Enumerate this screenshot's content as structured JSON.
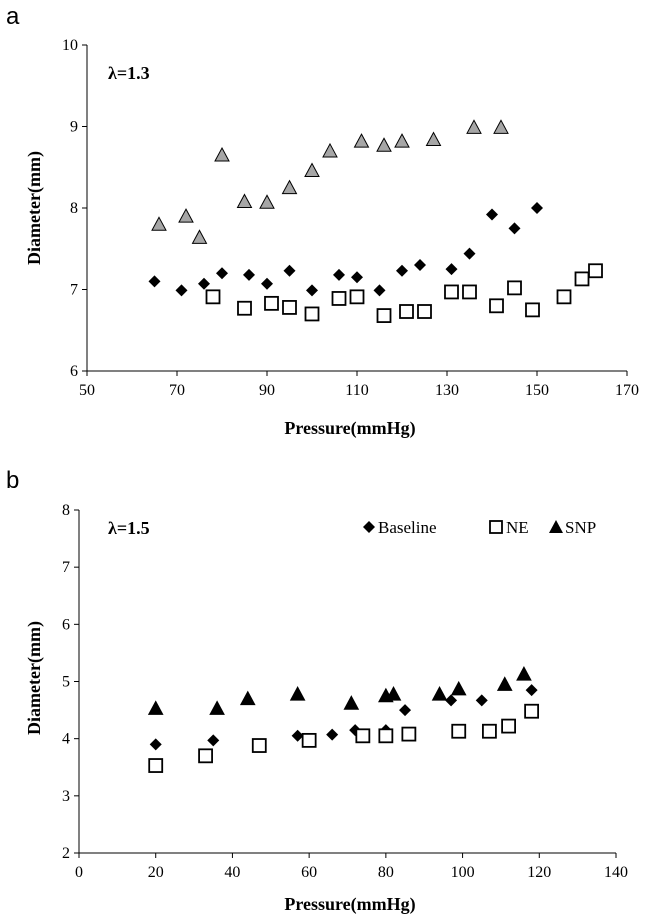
{
  "chart_data": [
    {
      "type": "scatter",
      "panel": "a",
      "annotation": "λ=1.3",
      "xlabel": "Pressure(mmHg)",
      "ylabel": "Diameter(mm)",
      "xlim": [
        50,
        170
      ],
      "ylim": [
        6,
        10
      ],
      "xticks": [
        50,
        70,
        90,
        110,
        130,
        150,
        170
      ],
      "yticks": [
        6,
        7,
        8,
        9,
        10
      ],
      "grid": false,
      "series": [
        {
          "marker": "diamond",
          "color": "#000000",
          "points": [
            [
              65,
              7.1
            ],
            [
              71,
              6.99
            ],
            [
              76,
              7.07
            ],
            [
              80,
              7.2
            ],
            [
              86,
              7.18
            ],
            [
              90,
              7.07
            ],
            [
              95,
              7.23
            ],
            [
              100,
              6.99
            ],
            [
              106,
              7.18
            ],
            [
              110,
              7.15
            ],
            [
              115,
              6.99
            ],
            [
              120,
              7.23
            ],
            [
              124,
              7.3
            ],
            [
              131,
              7.25
            ],
            [
              135,
              7.44
            ],
            [
              140,
              7.92
            ],
            [
              145,
              7.75
            ],
            [
              150,
              8.0
            ]
          ]
        },
        {
          "marker": "square-open",
          "color": "#000000",
          "points": [
            [
              78,
              6.91
            ],
            [
              85,
              6.77
            ],
            [
              91,
              6.83
            ],
            [
              95,
              6.78
            ],
            [
              100,
              6.7
            ],
            [
              106,
              6.89
            ],
            [
              110,
              6.91
            ],
            [
              116,
              6.68
            ],
            [
              121,
              6.73
            ],
            [
              125,
              6.73
            ],
            [
              131,
              6.97
            ],
            [
              135,
              6.97
            ],
            [
              141,
              6.8
            ],
            [
              145,
              7.02
            ],
            [
              149,
              6.75
            ],
            [
              156,
              6.91
            ],
            [
              160,
              7.13
            ],
            [
              163,
              7.23
            ]
          ]
        },
        {
          "marker": "triangle",
          "color": "#a6a6a6",
          "points": [
            [
              66,
              7.8
            ],
            [
              72,
              7.9
            ],
            [
              75,
              7.64
            ],
            [
              80,
              8.65
            ],
            [
              85,
              8.08
            ],
            [
              90,
              8.07
            ],
            [
              95,
              8.25
            ],
            [
              100,
              8.46
            ],
            [
              104,
              8.7
            ],
            [
              111,
              8.82
            ],
            [
              116,
              8.77
            ],
            [
              120,
              8.82
            ],
            [
              127,
              8.84
            ],
            [
              136,
              8.99
            ],
            [
              142,
              8.99
            ]
          ]
        }
      ]
    },
    {
      "type": "scatter",
      "panel": "b",
      "annotation": "λ=1.5",
      "xlabel": "Pressure(mmHg)",
      "ylabel": "Diameter(mm)",
      "xlim": [
        0,
        140
      ],
      "ylim": [
        2,
        8
      ],
      "xticks": [
        0,
        20,
        40,
        60,
        80,
        100,
        120,
        140
      ],
      "yticks": [
        2,
        3,
        4,
        5,
        6,
        7,
        8
      ],
      "grid": false,
      "legend_position": "top-right",
      "series": [
        {
          "name": "Baseline",
          "marker": "diamond",
          "color": "#000000",
          "points": [
            [
              20,
              3.9
            ],
            [
              35,
              3.97
            ],
            [
              57,
              4.05
            ],
            [
              66,
              4.07
            ],
            [
              72,
              4.15
            ],
            [
              80,
              4.15
            ],
            [
              85,
              4.5
            ],
            [
              97,
              4.67
            ],
            [
              105,
              4.67
            ],
            [
              118,
              4.85
            ]
          ]
        },
        {
          "name": "NE",
          "marker": "square-open",
          "color": "#000000",
          "points": [
            [
              20,
              3.53
            ],
            [
              33,
              3.7
            ],
            [
              47,
              3.88
            ],
            [
              60,
              3.97
            ],
            [
              74,
              4.05
            ],
            [
              80,
              4.05
            ],
            [
              86,
              4.08
            ],
            [
              99,
              4.13
            ],
            [
              107,
              4.13
            ],
            [
              112,
              4.22
            ],
            [
              118,
              4.48
            ]
          ]
        },
        {
          "name": "SNP",
          "marker": "triangle",
          "color": "#000000",
          "points": [
            [
              20,
              4.53
            ],
            [
              36,
              4.53
            ],
            [
              44,
              4.7
            ],
            [
              57,
              4.78
            ],
            [
              71,
              4.62
            ],
            [
              80,
              4.75
            ],
            [
              82,
              4.78
            ],
            [
              94,
              4.78
            ],
            [
              99,
              4.87
            ],
            [
              111,
              4.95
            ],
            [
              116,
              5.13
            ]
          ]
        }
      ]
    }
  ]
}
